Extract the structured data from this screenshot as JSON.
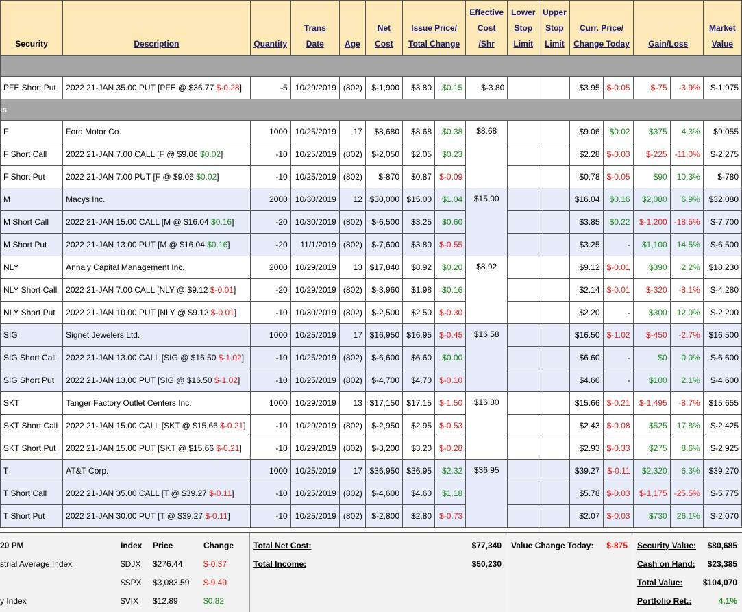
{
  "headers": {
    "security": "Security",
    "description": "Description",
    "quantity": "Quantity",
    "trans_date_1": "Trans",
    "trans_date_2": "Date",
    "age": "Age",
    "net_cost_1": "Net",
    "net_cost_2": "Cost",
    "issue_price_1": "Issue Price/",
    "issue_price_2": "Total Change",
    "eff_cost_1": "Effective",
    "eff_cost_2": "Cost",
    "eff_cost_3": "/Shr",
    "lower_stop_1": "Lower",
    "lower_stop_2": "Stop",
    "lower_stop_3": "Limit",
    "upper_stop_1": "Upper",
    "upper_stop_2": "Stop",
    "upper_stop_3": "Limit",
    "curr_price_1": "Curr. Price/",
    "curr_price_2": "Change Today",
    "gain_loss": "Gain/Loss",
    "market_value_1": "Market",
    "market_value_2": "Value"
  },
  "sections": [
    {
      "label": ""
    },
    {
      "label": "ns"
    }
  ],
  "rows": [
    {
      "security": "PFE Short Put",
      "desc": "2022 21-JAN 35.00 PUT [PFE @ $36.77 ",
      "desc_chg": "$-0.28",
      "desc_chg_sign": "neg",
      "desc_end": "]",
      "qty": "-5",
      "date": "10/29/2019",
      "age": "(802)",
      "net_cost": "$-1,900",
      "issue": "$3.80",
      "tot_chg": "$0.15",
      "tot_chg_sign": "pos",
      "eff": "$-3.80",
      "curr": "$3.95",
      "chg_today": "$-0.05",
      "chg_today_sign": "neg",
      "gain": "$-75",
      "gain_sign": "neg",
      "pct": "-3.9%",
      "pct_sign": "neg",
      "mv": "$-1,975",
      "blue": false
    },
    {
      "security": "F",
      "desc": "Ford Motor Co.",
      "desc_chg": "",
      "desc_chg_sign": "",
      "desc_end": "",
      "qty": "1000",
      "date": "10/25/2019",
      "age": "17",
      "net_cost": "$8,680",
      "issue": "$8.68",
      "tot_chg": "$0.38",
      "tot_chg_sign": "pos",
      "eff": "$8.68",
      "curr": "$9.06",
      "chg_today": "$0.02",
      "chg_today_sign": "pos",
      "gain": "$375",
      "gain_sign": "pos",
      "pct": "4.3%",
      "pct_sign": "pos",
      "mv": "$9,055",
      "blue": false
    },
    {
      "security": "F Short Call",
      "desc": "2022 21-JAN 7.00 CALL [F @ $9.06 ",
      "desc_chg": "$0.02",
      "desc_chg_sign": "pos",
      "desc_end": "]",
      "qty": "-10",
      "date": "10/25/2019",
      "age": "(802)",
      "net_cost": "$-2,050",
      "issue": "$2.05",
      "tot_chg": "$0.23",
      "tot_chg_sign": "pos",
      "eff": "",
      "curr": "$2.28",
      "chg_today": "$-0.03",
      "chg_today_sign": "neg",
      "gain": "$-225",
      "gain_sign": "neg",
      "pct": "-11.0%",
      "pct_sign": "neg",
      "mv": "$-2,275",
      "blue": false
    },
    {
      "security": "F Short Put",
      "desc": "2022 21-JAN 7.00 PUT [F @ $9.06 ",
      "desc_chg": "$0.02",
      "desc_chg_sign": "pos",
      "desc_end": "]",
      "qty": "-10",
      "date": "10/25/2019",
      "age": "(802)",
      "net_cost": "$-870",
      "issue": "$0.87",
      "tot_chg": "$-0.09",
      "tot_chg_sign": "neg",
      "eff": "",
      "curr": "$0.78",
      "chg_today": "$-0.05",
      "chg_today_sign": "neg",
      "gain": "$90",
      "gain_sign": "pos",
      "pct": "10.3%",
      "pct_sign": "pos",
      "mv": "$-780",
      "blue": false
    },
    {
      "security": "M",
      "desc": "Macys Inc.",
      "desc_chg": "",
      "desc_chg_sign": "",
      "desc_end": "",
      "qty": "2000",
      "date": "10/30/2019",
      "age": "12",
      "net_cost": "$30,000",
      "issue": "$15.00",
      "tot_chg": "$1.04",
      "tot_chg_sign": "pos",
      "eff": "$15.00",
      "curr": "$16.04",
      "chg_today": "$0.16",
      "chg_today_sign": "pos",
      "gain": "$2,080",
      "gain_sign": "pos",
      "pct": "6.9%",
      "pct_sign": "pos",
      "mv": "$32,080",
      "blue": true
    },
    {
      "security": "M Short Call",
      "desc": "2022 21-JAN 15.00 CALL [M @ $16.04 ",
      "desc_chg": "$0.16",
      "desc_chg_sign": "pos",
      "desc_end": "]",
      "qty": "-20",
      "date": "10/30/2019",
      "age": "(802)",
      "net_cost": "$-6,500",
      "issue": "$3.25",
      "tot_chg": "$0.60",
      "tot_chg_sign": "pos",
      "eff": "",
      "curr": "$3.85",
      "chg_today": "$0.22",
      "chg_today_sign": "pos",
      "gain": "$-1,200",
      "gain_sign": "neg",
      "pct": "-18.5%",
      "pct_sign": "neg",
      "mv": "$-7,700",
      "blue": true
    },
    {
      "security": "M Short Put",
      "desc": "2022 21-JAN 13.00 PUT [M @ $16.04 ",
      "desc_chg": "$0.16",
      "desc_chg_sign": "pos",
      "desc_end": "]",
      "qty": "-20",
      "date": "11/1/2019",
      "age": "(802)",
      "net_cost": "$-7,600",
      "issue": "$3.80",
      "tot_chg": "$-0.55",
      "tot_chg_sign": "neg",
      "eff": "",
      "curr": "$3.25",
      "chg_today": "-",
      "chg_today_sign": "",
      "gain": "$1,100",
      "gain_sign": "pos",
      "pct": "14.5%",
      "pct_sign": "pos",
      "mv": "$-6,500",
      "blue": true
    },
    {
      "security": "NLY",
      "desc": "Annaly Capital Management Inc.",
      "desc_chg": "",
      "desc_chg_sign": "",
      "desc_end": "",
      "qty": "2000",
      "date": "10/29/2019",
      "age": "13",
      "net_cost": "$17,840",
      "issue": "$8.92",
      "tot_chg": "$0.20",
      "tot_chg_sign": "pos",
      "eff": "$8.92",
      "curr": "$9.12",
      "chg_today": "$-0.01",
      "chg_today_sign": "neg",
      "gain": "$390",
      "gain_sign": "pos",
      "pct": "2.2%",
      "pct_sign": "pos",
      "mv": "$18,230",
      "blue": false
    },
    {
      "security": "NLY Short Call",
      "desc": "2022 21-JAN 7.00 CALL [NLY @ $9.12 ",
      "desc_chg": "$-0.01",
      "desc_chg_sign": "neg",
      "desc_end": "]",
      "qty": "-20",
      "date": "10/29/2019",
      "age": "(802)",
      "net_cost": "$-3,960",
      "issue": "$1.98",
      "tot_chg": "$0.16",
      "tot_chg_sign": "pos",
      "eff": "",
      "curr": "$2.14",
      "chg_today": "$-0.01",
      "chg_today_sign": "neg",
      "gain": "$-320",
      "gain_sign": "neg",
      "pct": "-8.1%",
      "pct_sign": "neg",
      "mv": "$-4,280",
      "blue": false
    },
    {
      "security": "NLY Short Put",
      "desc": "2022 21-JAN 10.00 PUT [NLY @ $9.12 ",
      "desc_chg": "$-0.01",
      "desc_chg_sign": "neg",
      "desc_end": "]",
      "qty": "-10",
      "date": "10/30/2019",
      "age": "(802)",
      "net_cost": "$-2,500",
      "issue": "$2.50",
      "tot_chg": "$-0.30",
      "tot_chg_sign": "neg",
      "eff": "",
      "curr": "$2.20",
      "chg_today": "-",
      "chg_today_sign": "",
      "gain": "$300",
      "gain_sign": "pos",
      "pct": "12.0%",
      "pct_sign": "pos",
      "mv": "$-2,200",
      "blue": false
    },
    {
      "security": "SIG",
      "desc": "Signet Jewelers Ltd.",
      "desc_chg": "",
      "desc_chg_sign": "",
      "desc_end": "",
      "qty": "1000",
      "date": "10/25/2019",
      "age": "17",
      "net_cost": "$16,950",
      "issue": "$16.95",
      "tot_chg": "$-0.45",
      "tot_chg_sign": "neg",
      "eff": "$16.58",
      "curr": "$16.50",
      "chg_today": "$-1.02",
      "chg_today_sign": "neg",
      "gain": "$-450",
      "gain_sign": "neg",
      "pct": "-2.7%",
      "pct_sign": "neg",
      "mv": "$16,500",
      "blue": true
    },
    {
      "security": "SIG Short Call",
      "desc": "2022 21-JAN 13.00 CALL [SIG @ $16.50 ",
      "desc_chg": "$-1.02",
      "desc_chg_sign": "neg",
      "desc_end": "]",
      "qty": "-10",
      "date": "10/25/2019",
      "age": "(802)",
      "net_cost": "$-6,600",
      "issue": "$6.60",
      "tot_chg": "$0.00",
      "tot_chg_sign": "pos",
      "eff": "",
      "curr": "$6.60",
      "chg_today": "-",
      "chg_today_sign": "",
      "gain": "$0",
      "gain_sign": "pos",
      "pct": "0.0%",
      "pct_sign": "pos",
      "mv": "$-6,600",
      "blue": true
    },
    {
      "security": "SIG Short Put",
      "desc": "2022 21-JAN 13.00 PUT [SIG @ $16.50 ",
      "desc_chg": "$-1.02",
      "desc_chg_sign": "neg",
      "desc_end": "]",
      "qty": "-10",
      "date": "10/25/2019",
      "age": "(802)",
      "net_cost": "$-4,700",
      "issue": "$4.70",
      "tot_chg": "$-0.10",
      "tot_chg_sign": "neg",
      "eff": "",
      "curr": "$4.60",
      "chg_today": "-",
      "chg_today_sign": "",
      "gain": "$100",
      "gain_sign": "pos",
      "pct": "2.1%",
      "pct_sign": "pos",
      "mv": "$-4,600",
      "blue": true
    },
    {
      "security": "SKT",
      "desc": "Tanger Factory Outlet Centers Inc.",
      "desc_chg": "",
      "desc_chg_sign": "",
      "desc_end": "",
      "qty": "1000",
      "date": "10/29/2019",
      "age": "13",
      "net_cost": "$17,150",
      "issue": "$17.15",
      "tot_chg": "$-1.50",
      "tot_chg_sign": "neg",
      "eff": "$16.80",
      "curr": "$15.66",
      "chg_today": "$-0.21",
      "chg_today_sign": "neg",
      "gain": "$-1,495",
      "gain_sign": "neg",
      "pct": "-8.7%",
      "pct_sign": "neg",
      "mv": "$15,655",
      "blue": false
    },
    {
      "security": "SKT Short Call",
      "desc": "2022 21-JAN 15.00 CALL [SKT @ $15.66 ",
      "desc_chg": "$-0.21",
      "desc_chg_sign": "neg",
      "desc_end": "]",
      "qty": "-10",
      "date": "10/29/2019",
      "age": "(802)",
      "net_cost": "$-2,950",
      "issue": "$2.95",
      "tot_chg": "$-0.53",
      "tot_chg_sign": "neg",
      "eff": "",
      "curr": "$2.43",
      "chg_today": "$-0.08",
      "chg_today_sign": "neg",
      "gain": "$525",
      "gain_sign": "pos",
      "pct": "17.8%",
      "pct_sign": "pos",
      "mv": "$-2,425",
      "blue": false
    },
    {
      "security": "SKT Short Put",
      "desc": "2022 21-JAN 15.00 PUT [SKT @ $15.66 ",
      "desc_chg": "$-0.21",
      "desc_chg_sign": "neg",
      "desc_end": "]",
      "qty": "-10",
      "date": "10/29/2019",
      "age": "(802)",
      "net_cost": "$-3,200",
      "issue": "$3.20",
      "tot_chg": "$-0.28",
      "tot_chg_sign": "neg",
      "eff": "",
      "curr": "$2.93",
      "chg_today": "$-0.33",
      "chg_today_sign": "neg",
      "gain": "$275",
      "gain_sign": "pos",
      "pct": "8.6%",
      "pct_sign": "pos",
      "mv": "$-2,925",
      "blue": false
    },
    {
      "security": "T",
      "desc": "AT&T Corp.",
      "desc_chg": "",
      "desc_chg_sign": "",
      "desc_end": "",
      "qty": "1000",
      "date": "10/25/2019",
      "age": "17",
      "net_cost": "$36,950",
      "issue": "$36.95",
      "tot_chg": "$2.32",
      "tot_chg_sign": "pos",
      "eff": "$36.95",
      "curr": "$39.27",
      "chg_today": "$-0.11",
      "chg_today_sign": "neg",
      "gain": "$2,320",
      "gain_sign": "pos",
      "pct": "6.3%",
      "pct_sign": "pos",
      "mv": "$39,270",
      "blue": true
    },
    {
      "security": "T Short Call",
      "desc": "2022 21-JAN 35.00 CALL [T @ $39.27 ",
      "desc_chg": "$-0.11",
      "desc_chg_sign": "neg",
      "desc_end": "]",
      "qty": "-10",
      "date": "10/25/2019",
      "age": "(802)",
      "net_cost": "$-4,600",
      "issue": "$4.60",
      "tot_chg": "$1.18",
      "tot_chg_sign": "pos",
      "eff": "",
      "curr": "$5.78",
      "chg_today": "$-0.03",
      "chg_today_sign": "neg",
      "gain": "$-1,175",
      "gain_sign": "neg",
      "pct": "-25.5%",
      "pct_sign": "neg",
      "mv": "$-5,775",
      "blue": true
    },
    {
      "security": "T Short Put",
      "desc": "2022 21-JAN 30.00 PUT [T @ $39.27 ",
      "desc_chg": "$-0.11",
      "desc_chg_sign": "neg",
      "desc_end": "]",
      "qty": "-10",
      "date": "10/25/2019",
      "age": "(802)",
      "net_cost": "$-2,800",
      "issue": "$2.80",
      "tot_chg": "$-0.73",
      "tot_chg_sign": "neg",
      "eff": "",
      "curr": "$2.07",
      "chg_today": "$-0.03",
      "chg_today_sign": "neg",
      "gain": "$730",
      "gain_sign": "pos",
      "pct": "26.1%",
      "pct_sign": "pos",
      "mv": "$-2,070",
      "blue": true
    }
  ],
  "footer": {
    "time": "20 PM",
    "idx_head": {
      "index": "Index",
      "price": "Price",
      "change": "Change"
    },
    "indexes": [
      {
        "name": "strial Average Index",
        "symbol": "$DJX",
        "price": "$276.44",
        "change": "$-0.37",
        "sign": "neg"
      },
      {
        "name": "",
        "symbol": "$SPX",
        "price": "$3,083.59",
        "change": "$-9.49",
        "sign": "neg"
      },
      {
        "name": "y Index",
        "symbol": "$VIX",
        "price": "$12.89",
        "change": "$0.82",
        "sign": "pos"
      }
    ],
    "total_net_cost_label": "Total Net Cost:",
    "total_net_cost": "$77,340",
    "total_income_label": "Total Income:",
    "total_income": "$50,230",
    "value_change_label": "Value Change Today:",
    "value_change": "$-875",
    "security_value_label": "Security Value:",
    "security_value": "$80,685",
    "cash_label": "Cash on Hand:",
    "cash": "$23,385",
    "total_value_label": "Total Value:",
    "total_value": "$104,070",
    "portfolio_ret_label": "Portfolio Ret.:",
    "portfolio_ret": "4.1%"
  },
  "colors": {
    "header_bg": "#fde9b8",
    "positive": "#1e8a1e",
    "negative": "#e0211b",
    "row_alt": "#e6ecfa",
    "section_bg": "#a6a6a6"
  }
}
